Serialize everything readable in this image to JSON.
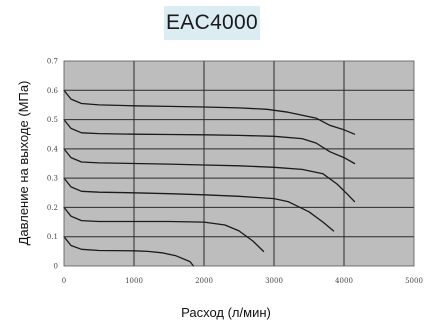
{
  "chart_data": {
    "type": "line",
    "title": "EAC4000",
    "xlabel": "Расход (л/мин)",
    "ylabel": "Давление на выходе (МПа)",
    "xlim": [
      0,
      5000
    ],
    "ylim": [
      0,
      0.7
    ],
    "xticks": [
      "0",
      "1000",
      "2000",
      "3000",
      "4000",
      "5000"
    ],
    "yticks": [
      "0",
      "0.1",
      "0.2",
      "0.3",
      "0.4",
      "0.5",
      "0.6",
      "0.7"
    ],
    "grid": true,
    "plot_background": "#bdbdbd",
    "line_color": "#1a1a1a",
    "series": [
      {
        "x": [
          0,
          100,
          250,
          500,
          1000,
          1500,
          2000,
          2500,
          2900,
          3200,
          3600,
          3800,
          4000,
          4150
        ],
        "y": [
          0.6,
          0.57,
          0.555,
          0.55,
          0.547,
          0.545,
          0.543,
          0.54,
          0.535,
          0.525,
          0.505,
          0.48,
          0.465,
          0.45
        ]
      },
      {
        "x": [
          0,
          100,
          250,
          500,
          1000,
          1500,
          2000,
          2500,
          3000,
          3400,
          3600,
          3800,
          4000,
          4150
        ],
        "y": [
          0.5,
          0.47,
          0.455,
          0.452,
          0.45,
          0.449,
          0.448,
          0.446,
          0.443,
          0.435,
          0.42,
          0.39,
          0.37,
          0.35
        ]
      },
      {
        "x": [
          0,
          100,
          250,
          500,
          1000,
          1500,
          2000,
          2500,
          3000,
          3400,
          3700,
          3900,
          4050,
          4150
        ],
        "y": [
          0.4,
          0.37,
          0.355,
          0.352,
          0.35,
          0.348,
          0.345,
          0.342,
          0.337,
          0.33,
          0.315,
          0.28,
          0.245,
          0.22
        ]
      },
      {
        "x": [
          0,
          100,
          250,
          500,
          1000,
          1500,
          2000,
          2500,
          3000,
          3200,
          3500,
          3700,
          3850
        ],
        "y": [
          0.3,
          0.27,
          0.255,
          0.252,
          0.25,
          0.247,
          0.243,
          0.238,
          0.23,
          0.22,
          0.185,
          0.15,
          0.12
        ]
      },
      {
        "x": [
          0,
          100,
          250,
          500,
          1000,
          1500,
          2000,
          2300,
          2500,
          2700,
          2850
        ],
        "y": [
          0.2,
          0.17,
          0.155,
          0.152,
          0.152,
          0.152,
          0.15,
          0.14,
          0.12,
          0.085,
          0.05
        ]
      },
      {
        "x": [
          0,
          100,
          250,
          500,
          1000,
          1200,
          1400,
          1600,
          1800,
          1850
        ],
        "y": [
          0.1,
          0.07,
          0.057,
          0.053,
          0.052,
          0.05,
          0.045,
          0.035,
          0.015,
          0.0
        ]
      }
    ]
  }
}
